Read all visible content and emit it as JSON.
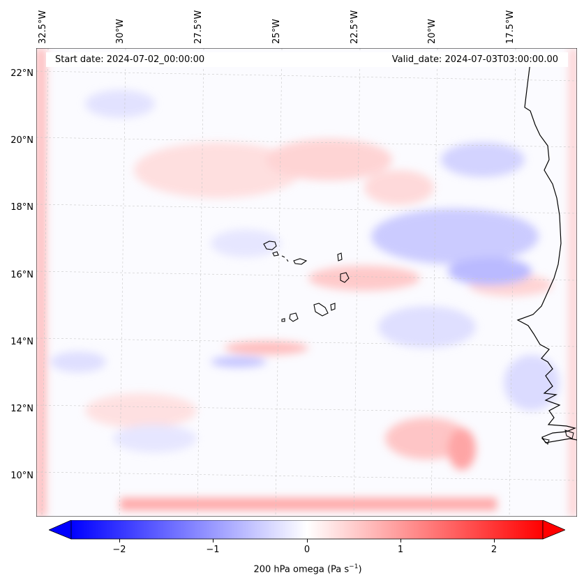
{
  "header": {
    "start_date": "Start date: 2024-07-02_00:00:00",
    "valid_date": "Valid_date: 2024-07-03T03:00:00.00"
  },
  "map": {
    "longitude_labels": [
      "32.5°W",
      "30°W",
      "27.5°W",
      "25°W",
      "22.5°W",
      "20°W",
      "17.5°W"
    ],
    "latitude_labels": [
      "22°N",
      "20°N",
      "18°N",
      "16°N",
      "14°N",
      "12°N",
      "10°N"
    ],
    "field": "200 hPa omega",
    "coastline_color": "#000000"
  },
  "colorbar": {
    "ticks": [
      "−2",
      "−1",
      "0",
      "1",
      "2"
    ],
    "label": "200 hPa omega (Pa s",
    "label_exponent": "−1",
    "label_suffix": ")",
    "min_color": "#0000ff",
    "mid_color": "#ffffff",
    "max_color": "#ff0000",
    "extend": "both"
  }
}
